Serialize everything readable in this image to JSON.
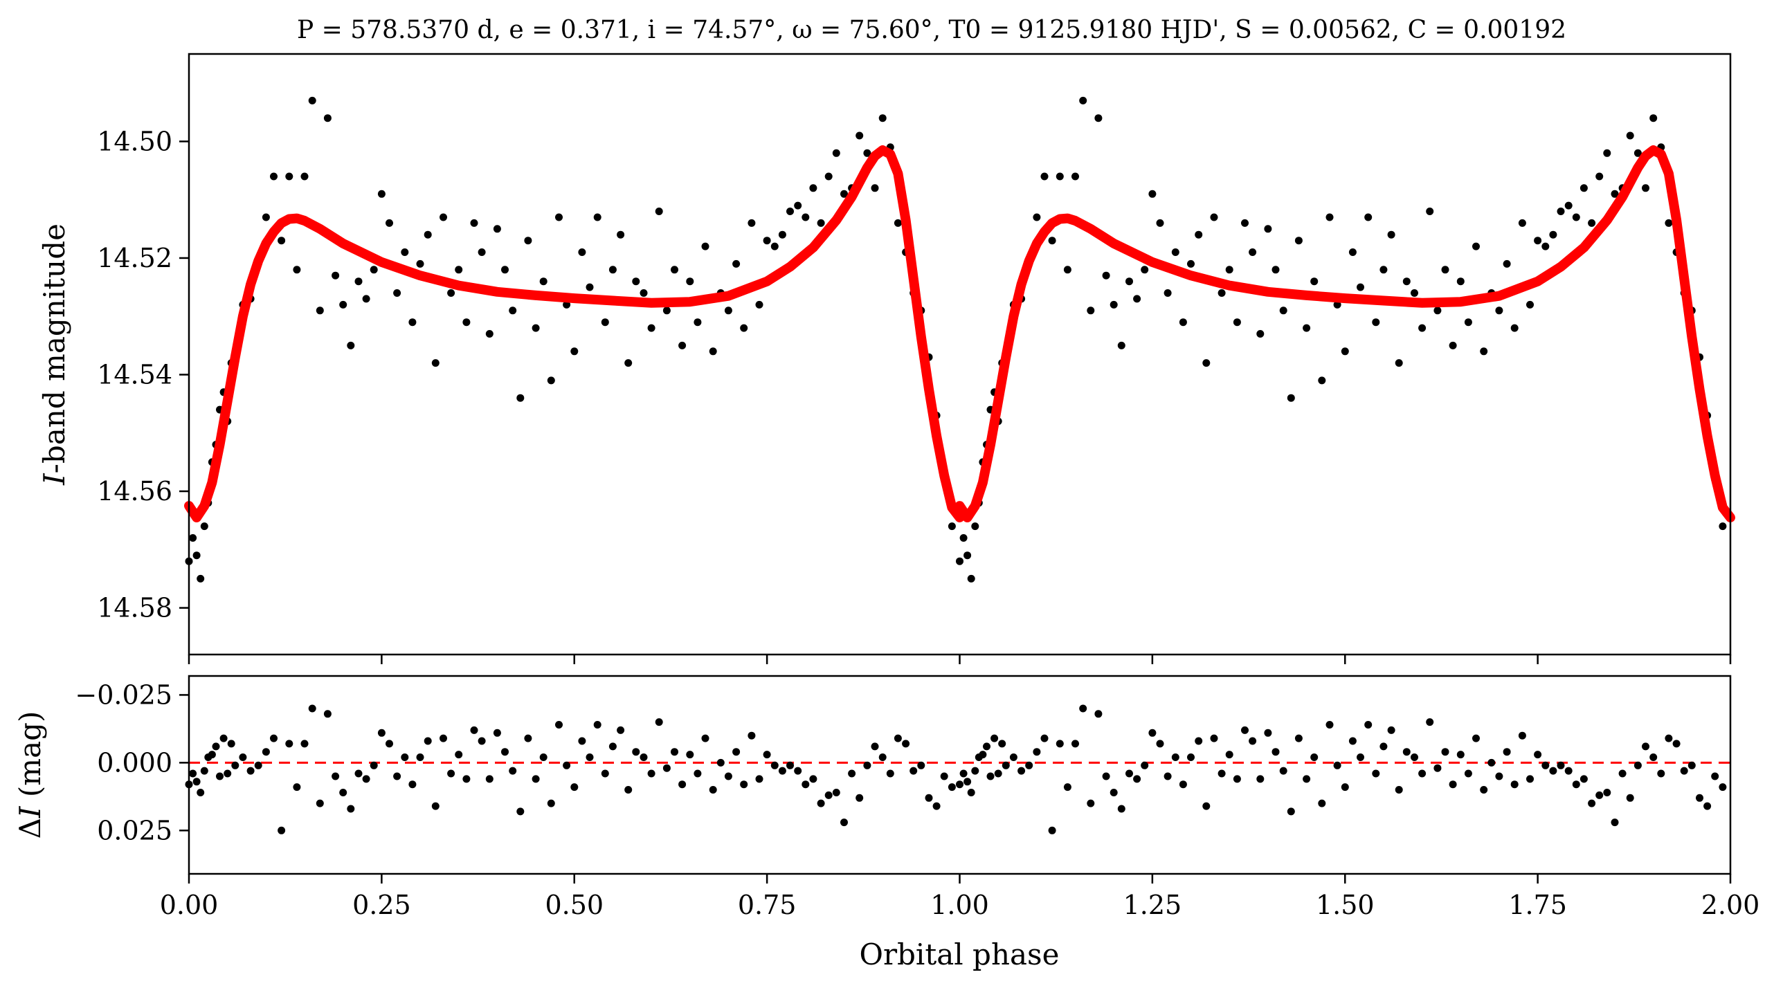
{
  "chart_data": [
    {
      "type": "scatter",
      "panel": "top",
      "title": "P = 578.5370 d, e = 0.371, i = 74.57°, ω = 75.60°, T0 = 9125.9180 HJD', S = 0.00562, C = 0.00192",
      "xlabel": "",
      "ylabel_italic": "I",
      "ylabel_rest": "-band magnitude",
      "xlim": [
        0.0,
        2.0
      ],
      "ylim": [
        14.588,
        14.485
      ],
      "y_inverted": true,
      "yticks": [
        14.5,
        14.52,
        14.54,
        14.56,
        14.58
      ],
      "ytick_labels": [
        "14.50",
        "14.52",
        "14.54",
        "14.56",
        "14.58"
      ],
      "xticks": [
        0.0,
        0.25,
        0.5,
        0.75,
        1.0,
        1.25,
        1.5,
        1.75,
        2.0
      ],
      "grid": false,
      "phase_repeat": [
        0.0,
        1.0
      ],
      "series": [
        {
          "name": "observations",
          "style": "black dots",
          "x": [
            0.0,
            0.005,
            0.01,
            0.015,
            0.02,
            0.025,
            0.03,
            0.035,
            0.04,
            0.045,
            0.05,
            0.055,
            0.06,
            0.07,
            0.08,
            0.09,
            0.1,
            0.11,
            0.12,
            0.13,
            0.14,
            0.15,
            0.16,
            0.17,
            0.18,
            0.19,
            0.2,
            0.21,
            0.22,
            0.23,
            0.24,
            0.25,
            0.26,
            0.27,
            0.28,
            0.29,
            0.3,
            0.31,
            0.32,
            0.33,
            0.34,
            0.35,
            0.36,
            0.37,
            0.38,
            0.39,
            0.4,
            0.41,
            0.42,
            0.43,
            0.44,
            0.45,
            0.46,
            0.47,
            0.48,
            0.49,
            0.5,
            0.51,
            0.52,
            0.53,
            0.54,
            0.55,
            0.56,
            0.57,
            0.58,
            0.59,
            0.6,
            0.61,
            0.62,
            0.63,
            0.64,
            0.65,
            0.66,
            0.67,
            0.68,
            0.69,
            0.7,
            0.71,
            0.72,
            0.73,
            0.74,
            0.75,
            0.76,
            0.77,
            0.78,
            0.79,
            0.8,
            0.81,
            0.82,
            0.83,
            0.84,
            0.85,
            0.86,
            0.87,
            0.88,
            0.89,
            0.9,
            0.91,
            0.92,
            0.93,
            0.94,
            0.95,
            0.96,
            0.97,
            0.98,
            0.99
          ],
          "y": [
            14.572,
            14.568,
            14.571,
            14.575,
            14.566,
            14.562,
            14.555,
            14.552,
            14.546,
            14.543,
            14.548,
            14.538,
            14.537,
            14.528,
            14.527,
            14.521,
            14.513,
            14.506,
            14.517,
            14.506,
            14.522,
            14.506,
            14.493,
            14.529,
            14.496,
            14.523,
            14.528,
            14.535,
            14.524,
            14.527,
            14.522,
            14.509,
            14.514,
            14.526,
            14.519,
            14.531,
            14.521,
            14.516,
            14.538,
            14.513,
            14.526,
            14.522,
            14.531,
            14.514,
            14.519,
            14.533,
            14.515,
            14.522,
            14.529,
            14.544,
            14.517,
            14.532,
            14.524,
            14.541,
            14.513,
            14.528,
            14.536,
            14.519,
            14.525,
            14.513,
            14.531,
            14.522,
            14.516,
            14.538,
            14.524,
            14.526,
            14.532,
            14.512,
            14.529,
            14.522,
            14.535,
            14.524,
            14.531,
            14.518,
            14.536,
            14.526,
            14.529,
            14.521,
            14.532,
            14.514,
            14.528,
            14.517,
            14.518,
            14.516,
            14.512,
            14.511,
            14.513,
            14.508,
            14.514,
            14.506,
            14.502,
            14.509,
            14.508,
            14.499,
            14.502,
            14.508,
            14.496,
            14.501,
            14.514,
            14.519,
            14.526,
            14.529,
            14.537,
            14.547,
            14.558,
            14.566
          ]
        },
        {
          "name": "model",
          "style": "thick red line",
          "x": [
            0.0,
            0.01,
            0.02,
            0.03,
            0.04,
            0.05,
            0.06,
            0.07,
            0.08,
            0.09,
            0.1,
            0.11,
            0.12,
            0.13,
            0.14,
            0.15,
            0.17,
            0.2,
            0.25,
            0.3,
            0.35,
            0.4,
            0.45,
            0.5,
            0.55,
            0.6,
            0.65,
            0.7,
            0.75,
            0.78,
            0.81,
            0.84,
            0.86,
            0.88,
            0.89,
            0.9,
            0.91,
            0.92,
            0.93,
            0.94,
            0.95,
            0.96,
            0.97,
            0.98,
            0.99,
            1.0
          ],
          "y": [
            14.5625,
            14.5645,
            14.5625,
            14.5585,
            14.552,
            14.5445,
            14.537,
            14.53,
            14.5245,
            14.5205,
            14.5175,
            14.5155,
            14.514,
            14.5133,
            14.5132,
            14.5136,
            14.515,
            14.5175,
            14.5207,
            14.523,
            14.5247,
            14.5258,
            14.5264,
            14.5269,
            14.5273,
            14.5277,
            14.5275,
            14.5265,
            14.524,
            14.5215,
            14.5182,
            14.5135,
            14.5095,
            14.5045,
            14.5025,
            14.5015,
            14.5022,
            14.5055,
            14.5135,
            14.5235,
            14.5335,
            14.5425,
            14.5505,
            14.5573,
            14.5628,
            14.5645
          ]
        }
      ]
    },
    {
      "type": "scatter",
      "panel": "bottom",
      "xlabel": "Orbital phase",
      "ylabel_delta": "Δ",
      "ylabel_italic": "I",
      "ylabel_rest": " (mag)",
      "xlim": [
        0.0,
        2.0
      ],
      "ylim": [
        0.041,
        -0.032
      ],
      "y_inverted": true,
      "yticks": [
        -0.025,
        0.0,
        0.025
      ],
      "ytick_labels": [
        "−0.025",
        "0.000",
        "0.025"
      ],
      "xticks": [
        0.0,
        0.25,
        0.5,
        0.75,
        1.0,
        1.25,
        1.5,
        1.75,
        2.0
      ],
      "xtick_labels": [
        "0.00",
        "0.25",
        "0.50",
        "0.75",
        "1.00",
        "1.25",
        "1.50",
        "1.75",
        "2.00"
      ],
      "zero_line": {
        "y": 0.0,
        "color": "#ff0000",
        "style": "dashed"
      },
      "grid": false,
      "phase_repeat": [
        0.0,
        1.0
      ],
      "series": [
        {
          "name": "residuals",
          "style": "black dots",
          "x": [
            0.0,
            0.005,
            0.01,
            0.015,
            0.02,
            0.025,
            0.03,
            0.035,
            0.04,
            0.045,
            0.05,
            0.055,
            0.06,
            0.07,
            0.08,
            0.09,
            0.1,
            0.11,
            0.12,
            0.13,
            0.14,
            0.15,
            0.16,
            0.17,
            0.18,
            0.19,
            0.2,
            0.21,
            0.22,
            0.23,
            0.24,
            0.25,
            0.26,
            0.27,
            0.28,
            0.29,
            0.3,
            0.31,
            0.32,
            0.33,
            0.34,
            0.35,
            0.36,
            0.37,
            0.38,
            0.39,
            0.4,
            0.41,
            0.42,
            0.43,
            0.44,
            0.45,
            0.46,
            0.47,
            0.48,
            0.49,
            0.5,
            0.51,
            0.52,
            0.53,
            0.54,
            0.55,
            0.56,
            0.57,
            0.58,
            0.59,
            0.6,
            0.61,
            0.62,
            0.63,
            0.64,
            0.65,
            0.66,
            0.67,
            0.68,
            0.69,
            0.7,
            0.71,
            0.72,
            0.73,
            0.74,
            0.75,
            0.76,
            0.77,
            0.78,
            0.79,
            0.8,
            0.81,
            0.82,
            0.83,
            0.84,
            0.85,
            0.86,
            0.87,
            0.88,
            0.89,
            0.9,
            0.91,
            0.92,
            0.93,
            0.94,
            0.95,
            0.96,
            0.97,
            0.98,
            0.99
          ],
          "y": [
            0.008,
            0.004,
            0.007,
            0.011,
            0.003,
            -0.002,
            -0.003,
            -0.006,
            0.005,
            -0.009,
            0.004,
            -0.007,
            0.001,
            -0.002,
            0.003,
            0.001,
            -0.004,
            -0.009,
            0.025,
            -0.007,
            0.009,
            -0.007,
            -0.02,
            0.015,
            -0.018,
            0.005,
            0.011,
            0.017,
            0.004,
            0.006,
            0.001,
            -0.011,
            -0.007,
            0.005,
            -0.002,
            0.008,
            -0.002,
            -0.008,
            0.016,
            -0.009,
            0.004,
            -0.003,
            0.006,
            -0.012,
            -0.008,
            0.006,
            -0.011,
            -0.004,
            0.003,
            0.018,
            -0.009,
            0.006,
            -0.002,
            0.015,
            -0.014,
            0.001,
            0.009,
            -0.008,
            -0.002,
            -0.014,
            0.004,
            -0.006,
            -0.012,
            0.01,
            -0.004,
            -0.002,
            0.004,
            -0.015,
            0.002,
            -0.004,
            0.008,
            -0.003,
            0.004,
            -0.009,
            0.01,
            0.0,
            0.005,
            -0.004,
            0.008,
            -0.01,
            0.006,
            -0.003,
            0.001,
            0.003,
            0.001,
            0.003,
            0.008,
            0.006,
            0.015,
            0.012,
            0.011,
            0.022,
            0.004,
            0.013,
            0.001,
            -0.006,
            -0.002,
            0.004,
            -0.009,
            -0.007,
            0.003,
            0.001,
            0.013,
            0.016,
            0.005,
            0.009
          ]
        }
      ]
    }
  ]
}
